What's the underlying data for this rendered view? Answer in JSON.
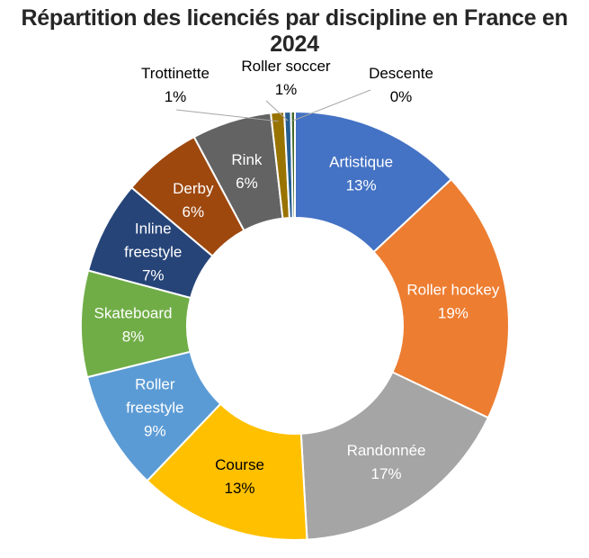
{
  "chart_data": {
    "type": "pie",
    "variant": "donut",
    "title": "Répartition des licenciés par discipline en France en 2024",
    "unit": "%",
    "slices": [
      {
        "name": "Artistique",
        "value": 13,
        "label": "13%",
        "color": "#4472C4",
        "label_color": "#ffffff"
      },
      {
        "name": "Roller hockey",
        "value": 19,
        "label": "19%",
        "color": "#ED7D31",
        "label_color": "#ffffff"
      },
      {
        "name": "Randonnée",
        "value": 17,
        "label": "17%",
        "color": "#A5A5A5",
        "label_color": "#ffffff"
      },
      {
        "name": "Course",
        "value": 13,
        "label": "13%",
        "color": "#FFC000",
        "label_color": "#000000"
      },
      {
        "name": "Roller freestyle",
        "value": 9,
        "label": "9%",
        "color": "#5B9BD5",
        "label_color": "#ffffff"
      },
      {
        "name": "Skateboard",
        "value": 8,
        "label": "8%",
        "color": "#70AD47",
        "label_color": "#ffffff"
      },
      {
        "name": "Inline freestyle",
        "value": 7,
        "label": "7%",
        "color": "#264478",
        "label_color": "#ffffff"
      },
      {
        "name": "Derby",
        "value": 6,
        "label": "6%",
        "color": "#9E480E",
        "label_color": "#ffffff"
      },
      {
        "name": "Rink",
        "value": 6,
        "label": "6%",
        "color": "#636363",
        "label_color": "#ffffff"
      },
      {
        "name": "Trottinette",
        "value": 1,
        "label": "1%",
        "color": "#997300",
        "label_color": "#000000"
      },
      {
        "name": "Roller soccer",
        "value": 0.5,
        "label": "1%",
        "color": "#255E91",
        "label_color": "#000000"
      },
      {
        "name": "Descente",
        "value": 0.3,
        "label": "0%",
        "color": "#43682B",
        "label_color": "#000000"
      }
    ]
  }
}
